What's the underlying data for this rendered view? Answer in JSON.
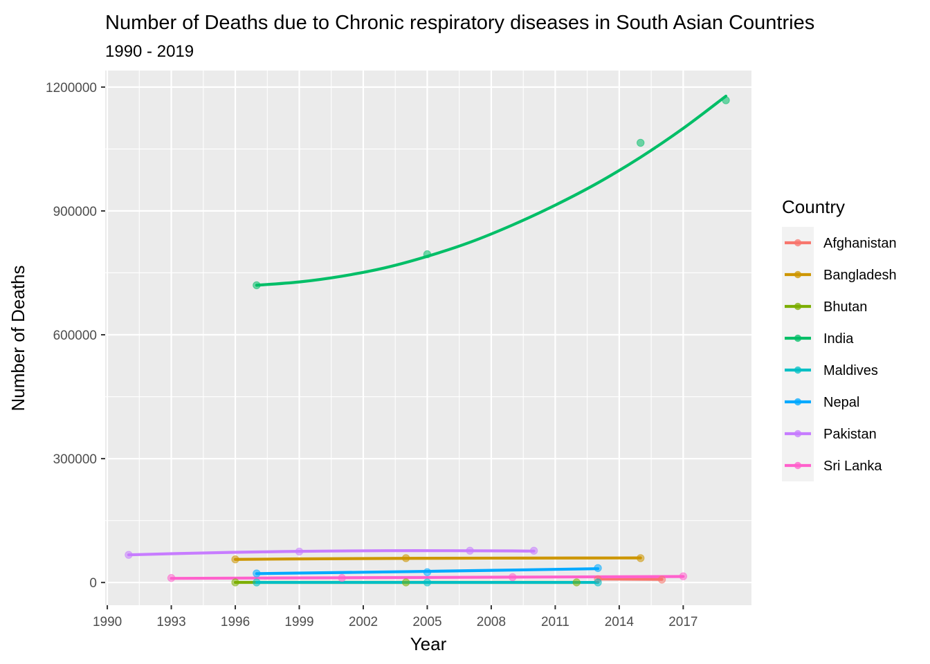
{
  "chart_data": {
    "type": "line",
    "title": "Number of Deaths due to Chronic respiratory diseases in South Asian Countries",
    "subtitle": "1990 - 2019",
    "xlabel": "Year",
    "ylabel": "Number of Deaths",
    "xlim": [
      1989.9,
      2020.2
    ],
    "ylim": [
      -55000,
      1240000
    ],
    "x_ticks": [
      1990,
      1993,
      1996,
      1999,
      2002,
      2005,
      2008,
      2011,
      2014,
      2017
    ],
    "x_tick_labels": [
      "1990",
      "1993",
      "1996",
      "1999",
      "2002",
      "2005",
      "2008",
      "2011",
      "2014",
      "2017"
    ],
    "y_ticks": [
      0,
      300000,
      600000,
      900000,
      1200000
    ],
    "y_tick_labels": [
      "0",
      "300000",
      "600000",
      "900000",
      "1200000"
    ],
    "grid": true,
    "legend": {
      "title": "Country",
      "position": "right"
    },
    "series": [
      {
        "name": "Afghanistan",
        "color": "#F8766D",
        "points": [
          [
            2013,
            8000
          ],
          [
            2016,
            7000
          ]
        ],
        "smooth": [
          [
            2013,
            8500
          ],
          [
            2016,
            7500
          ]
        ]
      },
      {
        "name": "Bangladesh",
        "color": "#CD9600",
        "points": [
          [
            1996,
            56000
          ],
          [
            2004,
            59000
          ],
          [
            2015,
            59000
          ]
        ],
        "smooth": [
          [
            1996,
            56000
          ],
          [
            2000,
            57500
          ],
          [
            2004,
            58500
          ],
          [
            2008,
            59000
          ],
          [
            2012,
            59300
          ],
          [
            2015,
            59500
          ]
        ]
      },
      {
        "name": "Bhutan",
        "color": "#7CAE00",
        "points": [
          [
            1996,
            300
          ],
          [
            2004,
            300
          ],
          [
            2012,
            300
          ]
        ],
        "smooth": [
          [
            1996,
            300
          ],
          [
            2012,
            300
          ]
        ]
      },
      {
        "name": "India",
        "color": "#00BE67",
        "points": [
          [
            1997,
            720000
          ],
          [
            2005,
            795000
          ],
          [
            2015,
            1065000
          ],
          [
            2019,
            1168000
          ]
        ],
        "smooth": [
          [
            1997,
            720000
          ],
          [
            1999,
            728000
          ],
          [
            2001,
            742000
          ],
          [
            2003,
            762000
          ],
          [
            2005,
            790000
          ],
          [
            2007,
            824000
          ],
          [
            2009,
            866000
          ],
          [
            2011,
            914000
          ],
          [
            2013,
            968000
          ],
          [
            2015,
            1030000
          ],
          [
            2017,
            1100000
          ],
          [
            2019,
            1178000
          ]
        ]
      },
      {
        "name": "Maldives",
        "color": "#00BFC4",
        "points": [
          [
            1997,
            200
          ],
          [
            2005,
            200
          ],
          [
            2013,
            200
          ]
        ],
        "smooth": [
          [
            1997,
            200
          ],
          [
            2013,
            200
          ]
        ]
      },
      {
        "name": "Nepal",
        "color": "#00A9FF",
        "points": [
          [
            1997,
            22000
          ],
          [
            2005,
            25000
          ],
          [
            2013,
            35000
          ]
        ],
        "smooth": [
          [
            1997,
            21500
          ],
          [
            2005,
            27000
          ],
          [
            2013,
            33500
          ]
        ]
      },
      {
        "name": "Pakistan",
        "color": "#C77CFF",
        "points": [
          [
            1991,
            67000
          ],
          [
            1999,
            75000
          ],
          [
            2007,
            77000
          ],
          [
            2010,
            77000
          ]
        ],
        "smooth": [
          [
            1991,
            67000
          ],
          [
            1994,
            71000
          ],
          [
            1997,
            74000
          ],
          [
            2000,
            76000
          ],
          [
            2003,
            77000
          ],
          [
            2006,
            77000
          ],
          [
            2009,
            76500
          ],
          [
            2010,
            76000
          ]
        ]
      },
      {
        "name": "Sri Lanka",
        "color": "#FF61CC",
        "points": [
          [
            1993,
            11000
          ],
          [
            2001,
            11000
          ],
          [
            2009,
            13000
          ],
          [
            2017,
            15000
          ]
        ],
        "smooth": [
          [
            1993,
            10000
          ],
          [
            2001,
            11500
          ],
          [
            2009,
            13000
          ],
          [
            2017,
            14500
          ]
        ]
      }
    ]
  }
}
